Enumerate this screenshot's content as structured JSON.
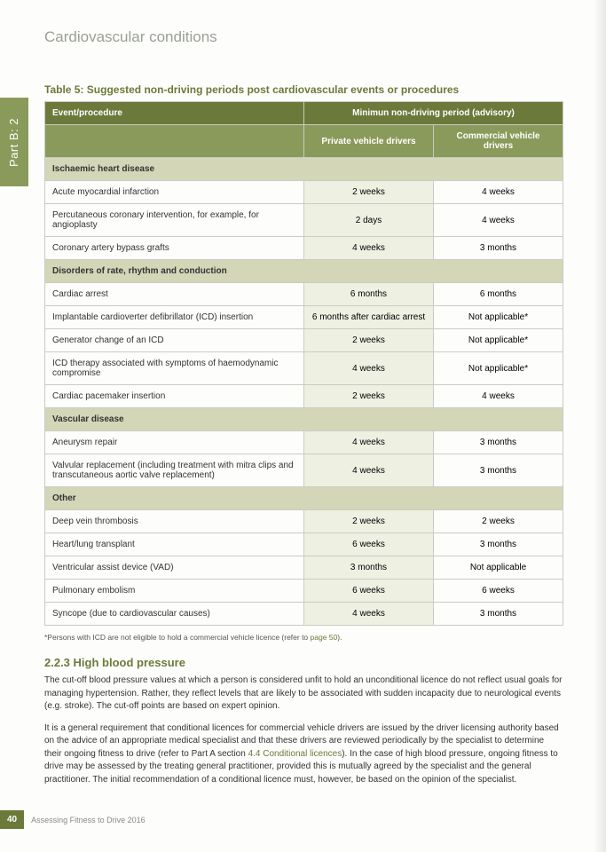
{
  "sideTab": "Part B: 2",
  "chapterTitle": "Cardiovascular conditions",
  "tableCaption": "Table 5: Suggested non-driving periods post cardiovascular events or procedures",
  "headers": {
    "event": "Event/procedure",
    "advisory": "Minimun non-driving period (advisory)",
    "private": "Private vehicle drivers",
    "commercial": "Commercial vehicle drivers"
  },
  "sections": [
    {
      "title": "Ischaemic heart disease",
      "rows": [
        {
          "event": "Acute myocardial infarction",
          "private": "2 weeks",
          "commercial": "4 weeks"
        },
        {
          "event": "Percutaneous coronary intervention, for example, for angioplasty",
          "private": "2 days",
          "commercial": "4 weeks"
        },
        {
          "event": "Coronary artery bypass grafts",
          "private": "4 weeks",
          "commercial": "3 months"
        }
      ]
    },
    {
      "title": "Disorders of rate, rhythm and conduction",
      "rows": [
        {
          "event": "Cardiac arrest",
          "private": "6 months",
          "commercial": "6 months"
        },
        {
          "event": "Implantable cardioverter defibrillator (ICD) insertion",
          "private": "6 months after cardiac arrest",
          "commercial": "Not applicable*"
        },
        {
          "event": "Generator change of an ICD",
          "private": "2 weeks",
          "commercial": "Not applicable*"
        },
        {
          "event": "ICD therapy associated with symptoms of haemodynamic compromise",
          "private": "4 weeks",
          "commercial": "Not applicable*"
        },
        {
          "event": "Cardiac pacemaker insertion",
          "private": "2 weeks",
          "commercial": "4 weeks"
        }
      ]
    },
    {
      "title": "Vascular disease",
      "rows": [
        {
          "event": "Aneurysm repair",
          "private": "4 weeks",
          "commercial": "3 months"
        },
        {
          "event": "Valvular replacement (including treatment with mitra clips and transcutaneous aortic valve replacement)",
          "private": "4 weeks",
          "commercial": "3 months"
        }
      ]
    },
    {
      "title": "Other",
      "rows": [
        {
          "event": "Deep vein thrombosis",
          "private": "2 weeks",
          "commercial": "2 weeks"
        },
        {
          "event": "Heart/lung transplant",
          "private": "6 weeks",
          "commercial": "3 months"
        },
        {
          "event": "Ventricular assist device (VAD)",
          "private": "3 months",
          "commercial": "Not applicable"
        },
        {
          "event": "Pulmonary embolism",
          "private": "6 weeks",
          "commercial": "6 weeks"
        },
        {
          "event": "Syncope (due to cardiovascular causes)",
          "private": "4 weeks",
          "commercial": "3 months"
        }
      ]
    }
  ],
  "footnote": {
    "pre": "*Persons with ICD are not eligible to hold a commercial vehicle licence (refer to ",
    "link": "page 50",
    "post": ")."
  },
  "sectionHeading": "2.2.3 High blood pressure",
  "para1": "The cut-off blood pressure values at which a person is considered unfit to hold an unconditional licence do not reflect usual goals for managing hypertension. Rather, they reflect levels that are likely to be associated with sudden incapacity due to neurological events (e.g. stroke). The cut-off points are based on expert opinion.",
  "para2": {
    "a": "It is a general requirement that conditional licences for commercial vehicle drivers are issued by the driver licensing authority based on the advice of an appropriate medical specialist and that these drivers are reviewed periodically by the specialist to determine their ongoing fitness to drive (refer to Part A section ",
    "link": "4.4 Conditional licences",
    "b": "). In the case of high blood pressure, ongoing fitness to drive may be assessed by the treating general practitioner, provided this is mutually agreed by the specialist and the general practitioner. The initial recommendation of a conditional licence must, however, be based on the opinion of the specialist."
  },
  "pageNum": "40",
  "footerTitle": "Assessing Fitness to Drive 2016",
  "colors": {
    "headerDark": "#6b7a3a",
    "headerLight": "#8a9a5b",
    "sectionRow": "#d3d7b8",
    "altCell": "#eef0e2",
    "border": "#c9ccc3"
  }
}
